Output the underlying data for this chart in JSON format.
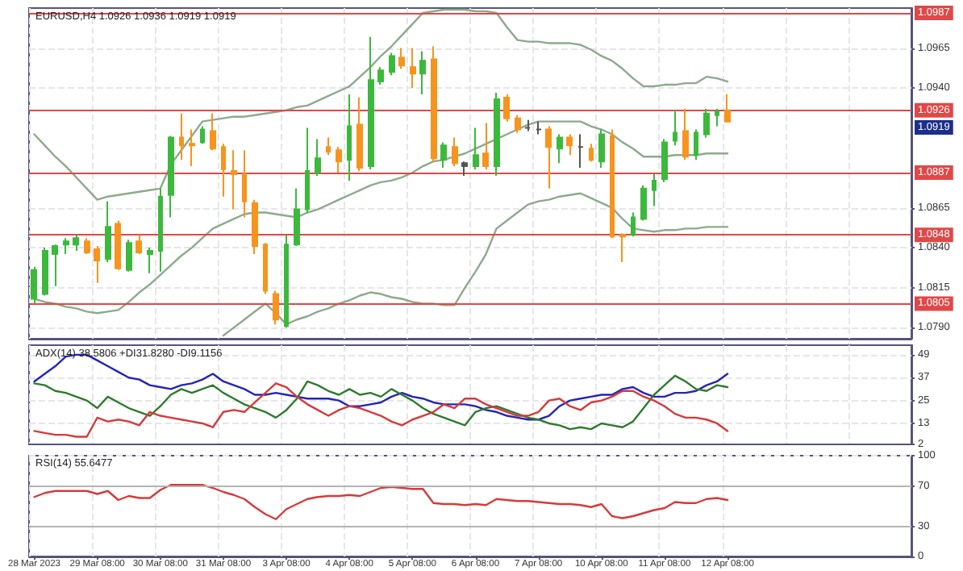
{
  "chart_data": [
    {
      "type": "candlestick",
      "title": "EURUSD,H4 1.0926 1.0936 1.0919 1.0919",
      "categories": [
        null,
        null,
        null,
        null,
        null,
        null,
        null,
        null,
        null,
        null,
        null,
        null,
        null,
        null,
        null,
        null,
        null,
        null,
        null,
        null,
        null,
        null,
        null,
        null,
        null,
        null,
        null,
        null,
        null,
        null,
        null,
        null,
        null,
        null,
        null,
        null,
        null,
        null,
        null,
        null,
        null,
        null,
        null,
        null,
        null,
        null,
        null,
        null,
        null,
        null,
        null,
        null,
        null,
        null,
        null,
        null,
        null,
        null,
        null,
        null,
        null,
        null,
        null,
        null,
        null,
        null,
        null
      ],
      "ohlc": [
        [
          1.0808,
          1.0828,
          1.0805,
          1.0826
        ],
        [
          1.0811,
          1.084,
          1.081,
          1.0838
        ],
        [
          1.0836,
          1.0842,
          1.0816,
          1.0841
        ],
        [
          1.0842,
          1.0846,
          1.0836,
          1.0844
        ],
        [
          1.0842,
          1.0848,
          1.0838,
          1.0846
        ],
        [
          1.0844,
          1.0846,
          1.0836,
          1.0837
        ],
        [
          1.0839,
          1.0841,
          1.0818,
          1.0832
        ],
        [
          1.0833,
          1.0869,
          1.0831,
          1.0853
        ],
        [
          1.0855,
          1.0857,
          1.0826,
          1.0827
        ],
        [
          1.0826,
          1.0845,
          1.0825,
          1.0843
        ],
        [
          1.0844,
          1.0848,
          1.0836,
          1.0837
        ],
        [
          1.0836,
          1.084,
          1.0824,
          1.0838
        ],
        [
          1.0838,
          1.0877,
          1.0825,
          1.0872
        ],
        [
          1.0873,
          1.091,
          1.0859,
          1.0909
        ],
        [
          1.0909,
          1.0924,
          1.0895,
          1.0904
        ],
        [
          1.0905,
          1.0914,
          1.0891,
          1.0904
        ],
        [
          1.0906,
          1.0916,
          1.0905,
          1.0914
        ],
        [
          1.0913,
          1.0924,
          1.0901,
          1.0902
        ],
        [
          1.0903,
          1.0905,
          1.0872,
          1.0889
        ],
        [
          1.0888,
          1.0901,
          1.0864,
          1.0886
        ],
        [
          1.0886,
          1.0901,
          1.0859,
          1.0869
        ],
        [
          1.0868,
          1.087,
          1.0836,
          1.0841
        ],
        [
          1.0842,
          1.0843,
          1.0811,
          1.0813
        ],
        [
          1.0811,
          1.0813,
          1.0792,
          1.0795
        ],
        [
          1.0791,
          1.0848,
          1.079,
          1.0842
        ],
        [
          1.0842,
          1.0877,
          1.0841,
          1.0864
        ],
        [
          1.0864,
          1.0915,
          1.0862,
          1.0888
        ],
        [
          1.0887,
          1.0908,
          1.0885,
          1.0896
        ],
        [
          1.0903,
          1.0909,
          1.0898,
          1.09
        ],
        [
          1.0901,
          1.0903,
          1.0887,
          1.0894
        ],
        [
          1.0895,
          1.0936,
          1.0882,
          1.0916
        ],
        [
          1.0917,
          1.0934,
          1.0888,
          1.089
        ],
        [
          1.0891,
          1.0972,
          1.0889,
          1.0945
        ],
        [
          1.0944,
          1.0953,
          1.0942,
          1.0951
        ],
        [
          1.095,
          1.0962,
          1.0948,
          1.096
        ],
        [
          1.0959,
          1.0965,
          1.0952,
          1.0954
        ],
        [
          1.0953,
          1.0965,
          1.094,
          1.0949
        ],
        [
          1.0949,
          1.0963,
          1.0936,
          1.0957
        ],
        [
          1.0958,
          1.0966,
          1.0894,
          1.0896
        ],
        [
          1.0895,
          1.0906,
          1.089,
          1.0904
        ],
        [
          1.0903,
          1.0909,
          1.0891,
          1.0893
        ],
        [
          1.0893,
          1.0894,
          1.0885,
          1.0891
        ],
        [
          1.0891,
          1.0915,
          1.0889,
          1.0898
        ],
        [
          1.0899,
          1.0918,
          1.0889,
          1.0891
        ],
        [
          1.0891,
          1.0937,
          1.0885,
          1.0933
        ],
        [
          1.0934,
          1.0936,
          1.0919,
          1.0921
        ],
        [
          1.0921,
          1.0923,
          1.0912,
          1.0914
        ],
        [
          1.0915,
          1.092,
          1.0913,
          1.0915
        ],
        [
          1.0914,
          1.0919,
          1.0911,
          1.0914
        ],
        [
          1.0914,
          1.0916,
          1.0877,
          1.0903
        ],
        [
          1.0902,
          1.0911,
          1.0893,
          1.0909
        ],
        [
          1.0909,
          1.0911,
          1.0898,
          1.0904
        ],
        [
          1.0903,
          1.0911,
          1.089,
          1.0903
        ],
        [
          1.0902,
          1.0905,
          1.0894,
          1.0895
        ],
        [
          1.0894,
          1.0914,
          1.089,
          1.0911
        ],
        [
          1.091,
          1.0914,
          1.0846,
          1.0847
        ],
        [
          1.0848,
          1.0849,
          1.0831,
          1.0847
        ],
        [
          1.0848,
          1.0862,
          1.0847,
          1.0859
        ],
        [
          1.0858,
          1.0879,
          1.0857,
          1.0877
        ],
        [
          1.0876,
          1.0886,
          1.0866,
          1.0882
        ],
        [
          1.0883,
          1.0908,
          1.0881,
          1.0906
        ],
        [
          1.0907,
          1.0926,
          1.0904,
          1.0912
        ],
        [
          1.0913,
          1.0927,
          1.0895,
          1.0897
        ],
        [
          1.0898,
          1.0914,
          1.0895,
          1.0912
        ],
        [
          1.0911,
          1.0927,
          1.0909,
          1.0924
        ],
        [
          1.0923,
          1.0927,
          1.0916,
          1.0925
        ],
        [
          1.0926,
          1.0936,
          1.0919,
          1.0919
        ]
      ],
      "colors": [
        "#3cb93c",
        "#3cb93c",
        "#3cb93c",
        "#3cb93c",
        "#3cb93c",
        "#f7941d",
        "#f7941d",
        "#3cb93c",
        "#f7941d",
        "#3cb93c",
        "#f7941d",
        "#3cb93c",
        "#3cb93c",
        "#3cb93c",
        "#f7941d",
        "#f7941d",
        "#3cb93c",
        "#f7941d",
        "#f7941d",
        "#f7941d",
        "#f7941d",
        "#f7941d",
        "#f7941d",
        "#f7941d",
        "#3cb93c",
        "#3cb93c",
        "#3cb93c",
        "#3cb93c",
        "#f7941d",
        "#f7941d",
        "#3cb93c",
        "#f7941d",
        "#3cb93c",
        "#3cb93c",
        "#3cb93c",
        "#f7941d",
        "#f7941d",
        "#3cb93c",
        "#f7941d",
        "#3cb93c",
        "#f7941d",
        "#555555",
        "#3cb93c",
        "#f7941d",
        "#3cb93c",
        "#f7941d",
        "#f7941d",
        "#555555",
        "#555555",
        "#f7941d",
        "#3cb93c",
        "#f7941d",
        "#555555",
        "#f7941d",
        "#3cb93c",
        "#f7941d",
        "#f7941d",
        "#3cb93c",
        "#3cb93c",
        "#3cb93c",
        "#3cb93c",
        "#3cb93c",
        "#f7941d",
        "#3cb93c",
        "#3cb93c",
        "#3cb93c",
        "#f7941d"
      ],
      "series": [
        {
          "type": "line",
          "color": "#8caa8c",
          "values": [
            1.0911,
            1.0904,
            1.0897,
            1.0891,
            1.0884,
            1.0877,
            1.087,
            1.0872,
            1.0873,
            1.0874,
            1.0875,
            1.0876,
            1.0877,
            1.0892,
            1.0901,
            1.091,
            1.0919,
            1.092,
            1.0921,
            1.0922,
            1.0922,
            1.0923,
            1.0924,
            1.0925,
            1.0926,
            1.0928,
            1.0929,
            1.0932,
            1.0935,
            1.0938,
            1.0941,
            1.0947,
            1.0953,
            1.096,
            1.0966,
            1.0973,
            1.098,
            1.0987,
            1.0988,
            1.0989,
            1.0989,
            1.0989,
            1.0988,
            1.0988,
            1.0987,
            1.0978,
            1.097,
            1.0969,
            1.0969,
            1.0968,
            1.0968,
            1.0968,
            1.0967,
            1.0964,
            1.096,
            1.0957,
            1.0952,
            1.0946,
            1.0941,
            1.0941,
            1.0942,
            1.0942,
            1.0943,
            1.0943,
            1.0947,
            1.0946,
            1.0944
          ]
        },
        {
          "type": "line",
          "color": "#8caa8c",
          "values": [
            1.0808,
            1.0806,
            1.0805,
            1.0803,
            1.0802,
            1.08,
            1.0799,
            1.08,
            1.0801,
            1.0806,
            1.0812,
            1.0817,
            1.0823,
            1.0829,
            1.0835,
            1.084,
            1.0846,
            1.0852,
            1.0855,
            1.0858,
            1.0861,
            1.0862,
            1.0862,
            1.0861,
            1.086,
            1.0859,
            1.0862,
            1.0864,
            1.0867,
            1.087,
            1.0873,
            1.0876,
            1.0879,
            1.0881,
            1.0882,
            1.0884,
            1.0887,
            1.0891,
            1.0894,
            1.0895,
            1.0897,
            1.0899,
            1.0902,
            1.0905,
            1.0908,
            1.0911,
            1.0914,
            1.0917,
            1.0919,
            1.0919,
            1.0919,
            1.0919,
            1.0919,
            1.0916,
            1.0914,
            1.0911,
            1.0906,
            1.0902,
            1.0897,
            1.0897,
            1.0897,
            1.0898,
            1.0898,
            1.0898,
            1.0899,
            1.0899,
            1.0899
          ]
        },
        {
          "type": "line",
          "color": "#8caa8c",
          "values": [
            null,
            null,
            null,
            null,
            null,
            null,
            null,
            null,
            null,
            null,
            null,
            null,
            null,
            null,
            null,
            null,
            null,
            null,
            1.0785,
            1.079,
            1.0795,
            1.08,
            1.0805,
            1.0799,
            1.0792,
            1.0795,
            1.0797,
            1.08,
            1.0802,
            1.0805,
            1.0807,
            1.081,
            1.0812,
            1.0811,
            1.0809,
            1.0808,
            1.0806,
            1.0805,
            1.0805,
            1.0804,
            1.0804,
            1.0815,
            1.0825,
            1.0836,
            1.0852,
            1.0857,
            1.0862,
            1.0867,
            1.0869,
            1.087,
            1.0872,
            1.0873,
            1.0874,
            1.0871,
            1.0868,
            1.0865,
            1.0858,
            1.0852,
            1.0851,
            1.085,
            1.0851,
            1.0851,
            1.0852,
            1.0852,
            1.0853,
            1.0853,
            1.0853
          ]
        }
      ],
      "ylim": [
        1.0783,
        1.099
      ],
      "yticks": [
        {
          "value": 1.079,
          "label": "1.0790"
        },
        1.0815,
        {
          "value": 1.084,
          "label": "1.0840"
        },
        1.0865,
        {
          "value": 1.094,
          "label": "1.0940"
        },
        1.0965
      ],
      "ref_lines": [
        {
          "axis": "y",
          "value": 1.0987,
          "label": "1.0987",
          "color": "#e04848"
        },
        {
          "axis": "y",
          "value": 1.0926,
          "label": "1.0926",
          "color": "#e04848"
        },
        {
          "axis": "y",
          "value": 1.0887,
          "label": "1.0887",
          "color": "#e04848"
        },
        {
          "axis": "y",
          "value": 1.0848,
          "label": "1.0848",
          "color": "#e04848"
        },
        {
          "axis": "y",
          "value": 1.0805,
          "label": "1.0805",
          "color": "#e04848"
        }
      ],
      "annotations": [
        "1.0919"
      ],
      "grid": true,
      "tick_labels": "y"
    },
    {
      "type": "line",
      "title": "ADX(14) 38.5806 +DI31.8280 -DI9.1156",
      "categories": [
        null,
        null,
        null,
        null,
        null,
        null,
        null,
        null,
        null,
        null,
        null,
        null,
        null,
        null,
        null,
        null,
        null,
        null,
        null,
        null,
        null,
        null,
        null,
        null,
        null,
        null,
        null,
        null,
        null,
        null,
        null,
        null,
        null,
        null,
        null,
        null,
        null,
        null,
        null,
        null,
        null,
        null,
        null,
        null,
        null,
        null,
        null,
        null,
        null,
        null,
        null,
        null,
        null,
        null,
        null,
        null,
        null,
        null,
        null,
        null,
        null,
        null,
        null,
        null,
        null,
        null,
        null
      ],
      "series": [
        {
          "color": "#2424b8",
          "values": [
            35,
            39,
            43,
            48,
            49,
            49,
            46,
            43,
            40,
            37,
            36,
            33,
            32,
            31,
            33,
            34,
            36,
            39,
            35,
            33,
            31,
            28,
            28,
            29,
            28,
            27,
            26,
            26,
            26,
            25,
            22,
            22,
            23,
            24,
            27,
            29,
            27,
            26,
            24,
            23,
            23,
            23,
            22,
            20,
            19,
            17,
            16,
            15,
            15,
            17,
            22,
            25,
            26,
            27,
            28,
            28,
            31,
            32,
            29,
            27,
            27,
            29,
            29,
            30,
            33,
            35,
            39
          ]
        },
        {
          "color": "#2e7b2e",
          "values": [
            34,
            33,
            30,
            29,
            27,
            25,
            21,
            27,
            24,
            21,
            19,
            17,
            22,
            28,
            31,
            29,
            31,
            33,
            29,
            26,
            23,
            21,
            19,
            16,
            20,
            26,
            35,
            33,
            30,
            28,
            31,
            28,
            29,
            27,
            31,
            28,
            25,
            21,
            18,
            16,
            14,
            12,
            19,
            21,
            22,
            20,
            18,
            16,
            15,
            13,
            12,
            10,
            11,
            10,
            13,
            12,
            11,
            14,
            21,
            28,
            33,
            38,
            35,
            31,
            30,
            33,
            32
          ]
        },
        {
          "color": "#d63a3a",
          "values": [
            9,
            8,
            7,
            7,
            6,
            6,
            16,
            14,
            15,
            14,
            12,
            19,
            17,
            16,
            15,
            14,
            13,
            11,
            19,
            20,
            19,
            24,
            29,
            34,
            32,
            27,
            23,
            20,
            17,
            20,
            22,
            21,
            19,
            17,
            14,
            12,
            15,
            17,
            19,
            23,
            21,
            26,
            26,
            23,
            21,
            19,
            17,
            17,
            19,
            25,
            26,
            22,
            20,
            24,
            25,
            27,
            30,
            30,
            27,
            25,
            22,
            18,
            16,
            16,
            15,
            13,
            9
          ]
        }
      ],
      "ylim": [
        2,
        54
      ],
      "yticks": [
        2,
        13,
        25,
        37,
        49
      ],
      "grid": true,
      "tick_labels": "y"
    },
    {
      "type": "line",
      "title": "RSI(14) 55.6477",
      "categories": [
        "28 Mar 2023",
        null,
        null,
        null,
        null,
        null,
        "29 Mar 08:00",
        null,
        null,
        null,
        null,
        null,
        "30 Mar 08:00",
        null,
        null,
        null,
        null,
        null,
        "31 Mar 08:00",
        null,
        null,
        null,
        null,
        null,
        "3 Apr 08:00",
        null,
        null,
        null,
        null,
        null,
        "4 Apr 08:00",
        null,
        null,
        null,
        null,
        null,
        "5 Apr 08:00",
        null,
        null,
        null,
        null,
        null,
        "6 Apr 08:00",
        null,
        null,
        null,
        null,
        null,
        "7 Apr 08:00",
        null,
        null,
        null,
        null,
        null,
        "10 Apr 08:00",
        null,
        null,
        null,
        null,
        null,
        "11 Apr 08:00",
        null,
        null,
        null,
        null,
        null,
        "12 Apr 08:00"
      ],
      "series": [
        {
          "color": "#d63a3a",
          "values": [
            59,
            63,
            65,
            65,
            65,
            65,
            62,
            65,
            56,
            60,
            58,
            58,
            66,
            71,
            71,
            71,
            71,
            68,
            64,
            61,
            57,
            49,
            42,
            37,
            47,
            52,
            57,
            59,
            60,
            60,
            61,
            60,
            64,
            68,
            69,
            68,
            67,
            67,
            53,
            52,
            52,
            51,
            52,
            51,
            57,
            56,
            55,
            55,
            54,
            53,
            52,
            52,
            51,
            49,
            52,
            40,
            38,
            40,
            43,
            46,
            48,
            54,
            53,
            53,
            57,
            58,
            56
          ]
        }
      ],
      "ylim": [
        0,
        100
      ],
      "yticks": [
        0,
        30,
        70,
        100
      ],
      "ref_lines": [
        {
          "axis": "y",
          "value": 70,
          "label": null,
          "color": "#b4b4b4"
        },
        {
          "axis": "y",
          "value": 30,
          "label": null,
          "color": "#b4b4b4"
        }
      ],
      "grid": true
    }
  ]
}
